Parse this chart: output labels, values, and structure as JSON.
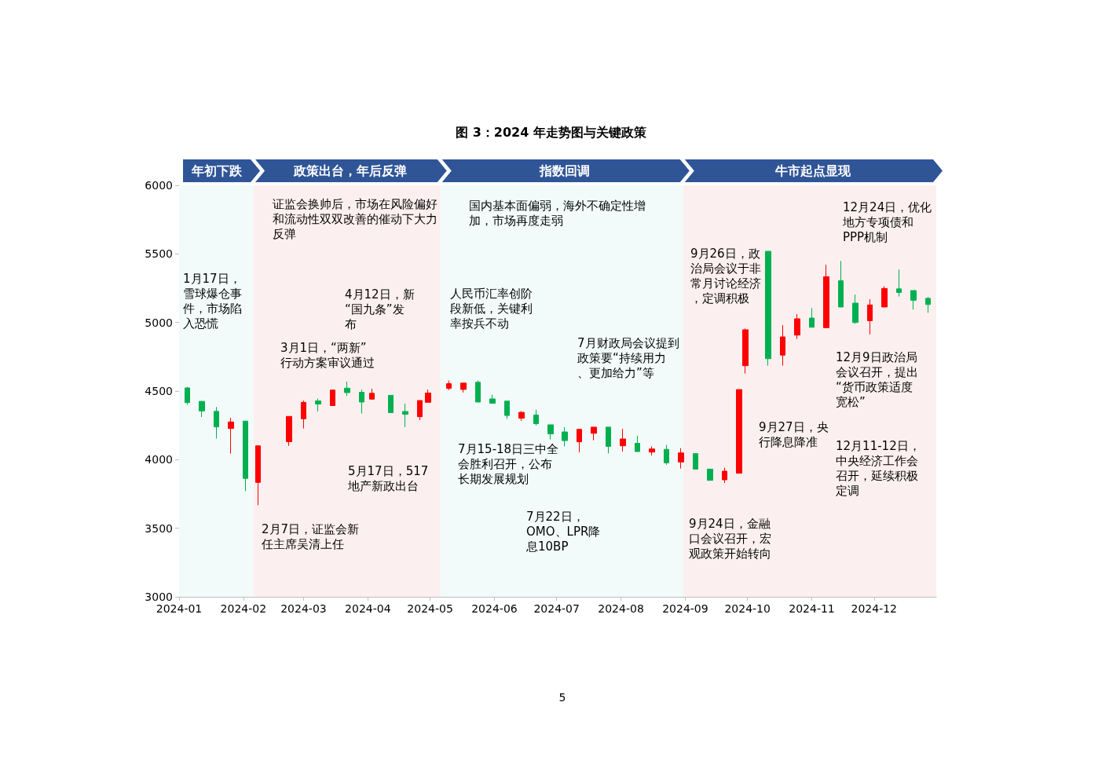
{
  "chart_data": {
    "type": "candlestick",
    "title": "图 3：2024 年走势图与关键政策",
    "x": [
      "2024-01-05",
      "2024-01-12",
      "2024-01-19",
      "2024-01-26",
      "2024-02-02",
      "2024-02-08",
      "2024-02-23",
      "2024-03-01",
      "2024-03-08",
      "2024-03-15",
      "2024-03-22",
      "2024-03-29",
      "2024-04-03",
      "2024-04-12",
      "2024-04-19",
      "2024-04-26",
      "2024-04-30",
      "2024-05-10",
      "2024-05-17",
      "2024-05-24",
      "2024-05-31",
      "2024-06-07",
      "2024-06-14",
      "2024-06-21",
      "2024-06-28",
      "2024-07-05",
      "2024-07-12",
      "2024-07-19",
      "2024-07-26",
      "2024-08-02",
      "2024-08-09",
      "2024-08-16",
      "2024-08-23",
      "2024-08-30",
      "2024-09-06",
      "2024-09-13",
      "2024-09-20",
      "2024-09-27",
      "2024-09-30",
      "2024-10-11",
      "2024-10-18",
      "2024-10-25",
      "2024-11-01",
      "2024-11-08",
      "2024-11-15",
      "2024-11-22",
      "2024-11-29",
      "2024-12-06",
      "2024-12-13",
      "2024-12-20",
      "2024-12-27"
    ],
    "ohlc": [
      [
        4523,
        4530,
        4400,
        4416
      ],
      [
        4425,
        4425,
        4311,
        4355
      ],
      [
        4352,
        4384,
        4154,
        4239
      ],
      [
        4227,
        4305,
        4044,
        4275
      ],
      [
        4281,
        4281,
        3771,
        3863
      ],
      [
        3834,
        4101,
        3668,
        4101
      ],
      [
        4131,
        4315,
        4101,
        4315
      ],
      [
        4298,
        4431,
        4227,
        4418
      ],
      [
        4428,
        4446,
        4351,
        4405
      ],
      [
        4394,
        4511,
        4394,
        4507
      ],
      [
        4521,
        4569,
        4466,
        4489
      ],
      [
        4491,
        4511,
        4336,
        4420
      ],
      [
        4441,
        4517,
        4441,
        4484
      ],
      [
        4469,
        4469,
        4343,
        4343
      ],
      [
        4351,
        4408,
        4237,
        4331
      ],
      [
        4313,
        4431,
        4288,
        4431
      ],
      [
        4418,
        4511,
        4418,
        4486
      ],
      [
        4520,
        4577,
        4507,
        4554
      ],
      [
        4512,
        4558,
        4489,
        4558
      ],
      [
        4564,
        4577,
        4420,
        4420
      ],
      [
        4443,
        4474,
        4411,
        4411
      ],
      [
        4427,
        4427,
        4298,
        4322
      ],
      [
        4302,
        4354,
        4283,
        4345
      ],
      [
        4325,
        4363,
        4249,
        4262
      ],
      [
        4254,
        4254,
        4147,
        4188
      ],
      [
        4202,
        4237,
        4097,
        4139
      ],
      [
        4130,
        4221,
        4053,
        4221
      ],
      [
        4192,
        4237,
        4141,
        4237
      ],
      [
        4237,
        4237,
        4045,
        4097
      ],
      [
        4101,
        4225,
        4059,
        4151
      ],
      [
        4119,
        4174,
        4059,
        4059
      ],
      [
        4055,
        4097,
        4030,
        4078
      ],
      [
        4075,
        4107,
        3963,
        3977
      ],
      [
        3983,
        4084,
        3935,
        4049
      ],
      [
        4044,
        4044,
        3931,
        3931
      ],
      [
        3931,
        3931,
        3849,
        3849
      ],
      [
        3853,
        3941,
        3830,
        3916
      ],
      [
        3901,
        4511,
        3901,
        4511
      ],
      [
        4685,
        4956,
        4628,
        4947
      ],
      [
        5519,
        5519,
        4685,
        4736
      ],
      [
        4762,
        4981,
        4685,
        4895
      ],
      [
        4908,
        5061,
        4880,
        5027
      ],
      [
        5032,
        5105,
        4965,
        4965
      ],
      [
        4962,
        5420,
        4962,
        5334
      ],
      [
        5305,
        5449,
        5113,
        5113
      ],
      [
        5141,
        5204,
        4991,
        5000
      ],
      [
        5013,
        5170,
        4912,
        5128
      ],
      [
        5113,
        5264,
        5113,
        5248
      ],
      [
        5245,
        5386,
        5189,
        5219
      ],
      [
        5233,
        5233,
        5094,
        5162
      ],
      [
        5176,
        5185,
        5071,
        5131
      ]
    ],
    "xlim": [
      "2024-01-01",
      "2024-12-31"
    ],
    "xticks": [
      "2024-01",
      "2024-02",
      "2024-03",
      "2024-04",
      "2024-05",
      "2024-06",
      "2024-07",
      "2024-08",
      "2024-09",
      "2024-10",
      "2024-11",
      "2024-12"
    ],
    "ylim": [
      3000,
      6000
    ],
    "yticks": [
      3000,
      3500,
      4000,
      4500,
      5000,
      5500,
      6000
    ],
    "grid": false,
    "bands": [
      {
        "axis": "x",
        "from": "2024-01-01",
        "to": "2024-02-06",
        "label": "年初下跌",
        "color": "#f2fbfa"
      },
      {
        "axis": "x",
        "from": "2024-02-06",
        "to": "2024-05-06",
        "label": "政策出台，年后反弹",
        "color": "#fbf0ef"
      },
      {
        "axis": "x",
        "from": "2024-05-06",
        "to": "2024-08-31",
        "label": "指数回调",
        "color": "#f2fbfa"
      },
      {
        "axis": "x",
        "from": "2024-08-31",
        "to": "2024-12-31",
        "label": "牛市起点显现",
        "color": "#fbf0ef"
      }
    ],
    "annotations": [
      "1月17日，雪球爆仓事件，市场陷入恐慌",
      "2月7日，证监会新任主席吴清上任",
      "证监会换帅后，市场在风险偏好和流动性双双改善的催动下大力反弹",
      "3月1日，“两新”行动方案审议通过",
      "4月12日，新“国九条”发布",
      "5月17日，517地产新政出台",
      "国内基本面偏弱，海外不确定性增加，市场再度走弱",
      "人民币汇率创阶段新低，关键利率按兵不动",
      "7月财政局会议提到政策要“持续用力、更加给力”等",
      "7月15-18日三中全会胜利召开，公布长期发展规划",
      "7月22日，OMO、LPR降息10BP",
      "9月26日，政治局会议于非常月讨论经济，定调积极",
      "9月24日，金融口会议召开，宏观政策开始转向",
      "9月27日，央行降息降准",
      "12月24日，优化地方专项债和PPP机制",
      "12月9日政治局会议召开，提出“货币政策适度宽松”",
      "12月11-12日，中央经济工作会召开，延续积极定调",
      "5"
    ]
  }
}
